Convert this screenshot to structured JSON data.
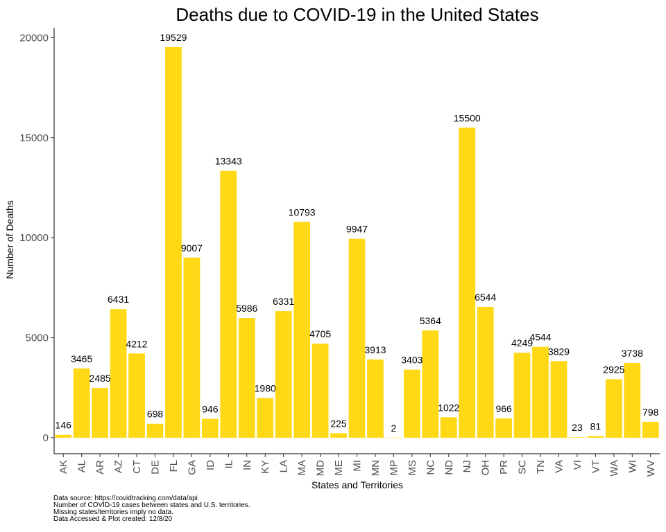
{
  "chart_data": {
    "type": "bar",
    "title": "Deaths due to COVID-19 in the United States",
    "xlabel": "States and Territories",
    "ylabel": "Number of Deaths",
    "categories": [
      "AK",
      "AL",
      "AR",
      "AZ",
      "CT",
      "DE",
      "FL",
      "GA",
      "ID",
      "IL",
      "IN",
      "KY",
      "LA",
      "MA",
      "MD",
      "ME",
      "MI",
      "MN",
      "MP",
      "MS",
      "NC",
      "ND",
      "NJ",
      "OH",
      "PR",
      "SC",
      "TN",
      "VA",
      "VI",
      "VT",
      "WA",
      "WI",
      "WV"
    ],
    "values": [
      146,
      3465,
      2485,
      6431,
      4212,
      698,
      19529,
      9007,
      946,
      13343,
      5986,
      1980,
      6331,
      10793,
      4705,
      225,
      9947,
      3913,
      2,
      3403,
      5364,
      1022,
      15500,
      6544,
      966,
      4249,
      4544,
      3829,
      23,
      81,
      2925,
      3738,
      798
    ],
    "yticks": [
      0,
      5000,
      10000,
      15000,
      20000
    ],
    "ylim": [
      -800,
      20500
    ],
    "bar_color": "#FFD816",
    "grid": false,
    "data_labels": true
  },
  "caption": {
    "lines": [
      "Data source: https://covidtracking.com/data/api",
      "Number of COVID-19 cases between states and U.S. territories.",
      "Missing states/territories imply no data.",
      "Data Accessed & Plot created: 12/8/20"
    ]
  }
}
